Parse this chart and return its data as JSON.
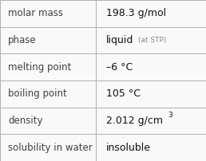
{
  "rows": [
    {
      "label": "molar mass",
      "value": "198.3 g/mol",
      "suffix": null,
      "superscript": null
    },
    {
      "label": "phase",
      "value": "liquid",
      "suffix": " (at STP)",
      "superscript": null
    },
    {
      "label": "melting point",
      "value": "–6 °C",
      "suffix": null,
      "superscript": null
    },
    {
      "label": "boiling point",
      "value": "105 °C",
      "suffix": null,
      "superscript": null
    },
    {
      "label": "density",
      "value": "2.012 g/cm",
      "suffix": null,
      "superscript": "3"
    },
    {
      "label": "solubility in water",
      "value": "insoluble",
      "suffix": null,
      "superscript": null
    }
  ],
  "col_split": 0.465,
  "bg_color": "#f9f9f9",
  "border_color": "#b0b0b0",
  "label_color": "#404040",
  "value_color": "#111111",
  "suffix_color": "#888888",
  "label_fontsize": 8.5,
  "value_fontsize": 9.0,
  "suffix_fontsize": 6.5,
  "super_fontsize": 6.5
}
